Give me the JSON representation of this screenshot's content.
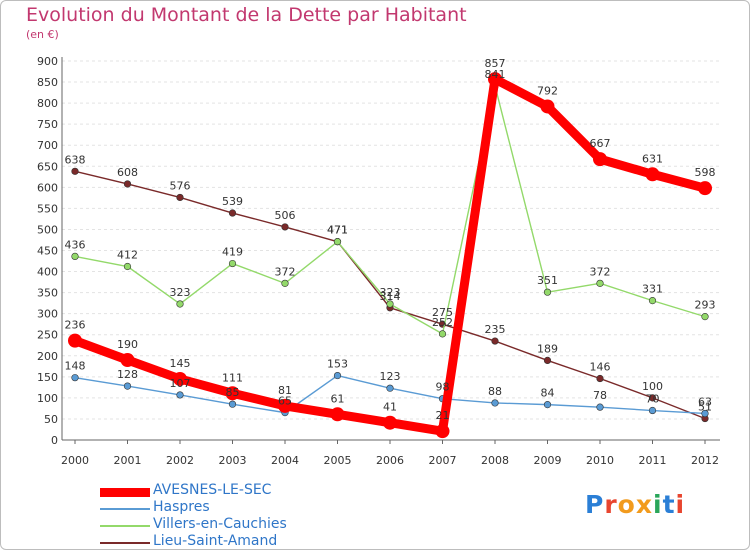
{
  "title": "Evolution du Montant de la Dette par Habitant",
  "unit": "(en €)",
  "logo": "Proxiti",
  "colors": {
    "title": "#c2386f",
    "grid": "#e3e3e3",
    "axis": "#666666",
    "avesnes": "#ff0000",
    "haspres": "#5a9bd4",
    "villers": "#93d96a",
    "lieu": "#7a2a2a"
  },
  "chart_data": {
    "type": "line",
    "categories": [
      "2000",
      "2001",
      "2002",
      "2003",
      "2004",
      "2005",
      "2006",
      "2007",
      "2008",
      "2009",
      "2010",
      "2011",
      "2012"
    ],
    "ylim": [
      0,
      900
    ],
    "yticks": [
      0,
      50,
      100,
      150,
      200,
      250,
      300,
      350,
      400,
      450,
      500,
      550,
      600,
      650,
      700,
      750,
      800,
      850,
      900
    ],
    "grid": true,
    "legend_position": "bottom-left",
    "series": [
      {
        "name": "AVESNES-LE-SEC",
        "color": "#ff0000",
        "values": [
          236,
          190,
          145,
          111,
          81,
          61,
          41,
          21,
          857,
          792,
          667,
          631,
          598
        ]
      },
      {
        "name": "Haspres",
        "color": "#5a9bd4",
        "values": [
          148,
          128,
          107,
          85,
          65,
          153,
          123,
          98,
          88,
          84,
          78,
          70,
          63
        ]
      },
      {
        "name": "Villers-en-Cauchies",
        "color": "#93d96a",
        "values": [
          436,
          412,
          323,
          419,
          372,
          471,
          323,
          252,
          841,
          351,
          372,
          331,
          293
        ]
      },
      {
        "name": "Lieu-Saint-Amand",
        "color": "#7a2a2a",
        "values": [
          638,
          608,
          576,
          539,
          506,
          471,
          314,
          275,
          235,
          189,
          146,
          100,
          51
        ]
      }
    ]
  }
}
